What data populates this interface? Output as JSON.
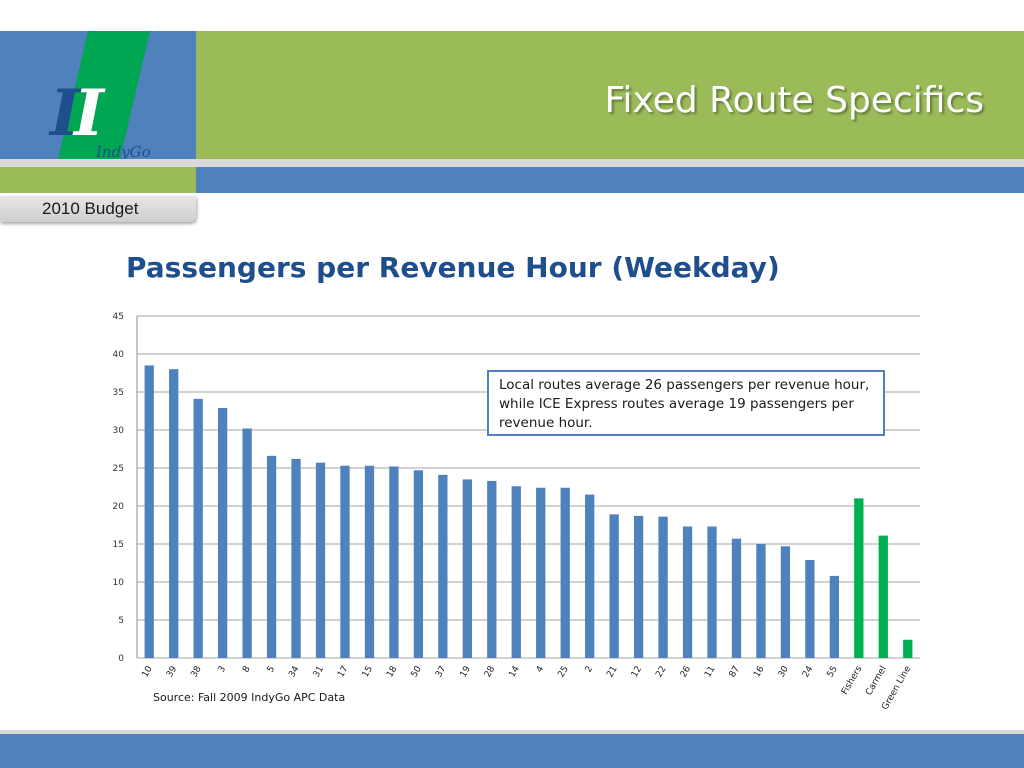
{
  "slide": {
    "title": "Fixed Route Specifics",
    "tab_label": "2010 Budget",
    "logo_text": "IndyGo",
    "colors": {
      "header_green": "#9bbb59",
      "band_blue": "#4f81bd",
      "logo_green": "#00a651",
      "title_blue": "#1f4e8c"
    }
  },
  "chart_data": {
    "type": "bar",
    "title": "Passengers per Revenue Hour (Weekday)",
    "categories": [
      "10",
      "39",
      "38",
      "3",
      "8",
      "5",
      "34",
      "31",
      "17",
      "15",
      "18",
      "50",
      "37",
      "19",
      "28",
      "14",
      "4",
      "25",
      "2",
      "21",
      "12",
      "22",
      "26",
      "11",
      "87",
      "16",
      "30",
      "24",
      "55",
      "Fishers",
      "Carmel",
      "Green Line"
    ],
    "values": [
      38.5,
      38,
      34.1,
      32.9,
      30.2,
      26.6,
      26.2,
      25.7,
      25.3,
      25.3,
      25.2,
      24.7,
      24.1,
      23.5,
      23.3,
      22.6,
      22.4,
      22.4,
      21.5,
      18.9,
      18.7,
      18.6,
      17.3,
      17.3,
      15.7,
      15.0,
      14.7,
      12.9,
      10.8,
      21.0,
      16.1,
      2.4
    ],
    "bar_colors": [
      "#4f81bd",
      "#4f81bd",
      "#4f81bd",
      "#4f81bd",
      "#4f81bd",
      "#4f81bd",
      "#4f81bd",
      "#4f81bd",
      "#4f81bd",
      "#4f81bd",
      "#4f81bd",
      "#4f81bd",
      "#4f81bd",
      "#4f81bd",
      "#4f81bd",
      "#4f81bd",
      "#4f81bd",
      "#4f81bd",
      "#4f81bd",
      "#4f81bd",
      "#4f81bd",
      "#4f81bd",
      "#4f81bd",
      "#4f81bd",
      "#4f81bd",
      "#4f81bd",
      "#4f81bd",
      "#4f81bd",
      "#4f81bd",
      "#00b050",
      "#00b050",
      "#00b050"
    ],
    "y_ticks": [
      0,
      5,
      10,
      15,
      20,
      25,
      30,
      35,
      40,
      45
    ],
    "ylim": [
      0,
      45
    ],
    "grid": true,
    "annotation": "Local routes average 26 passengers per revenue hour, while ICE Express routes average 19 passengers per revenue hour.",
    "source": "Source: Fall 2009 IndyGo APC Data"
  }
}
